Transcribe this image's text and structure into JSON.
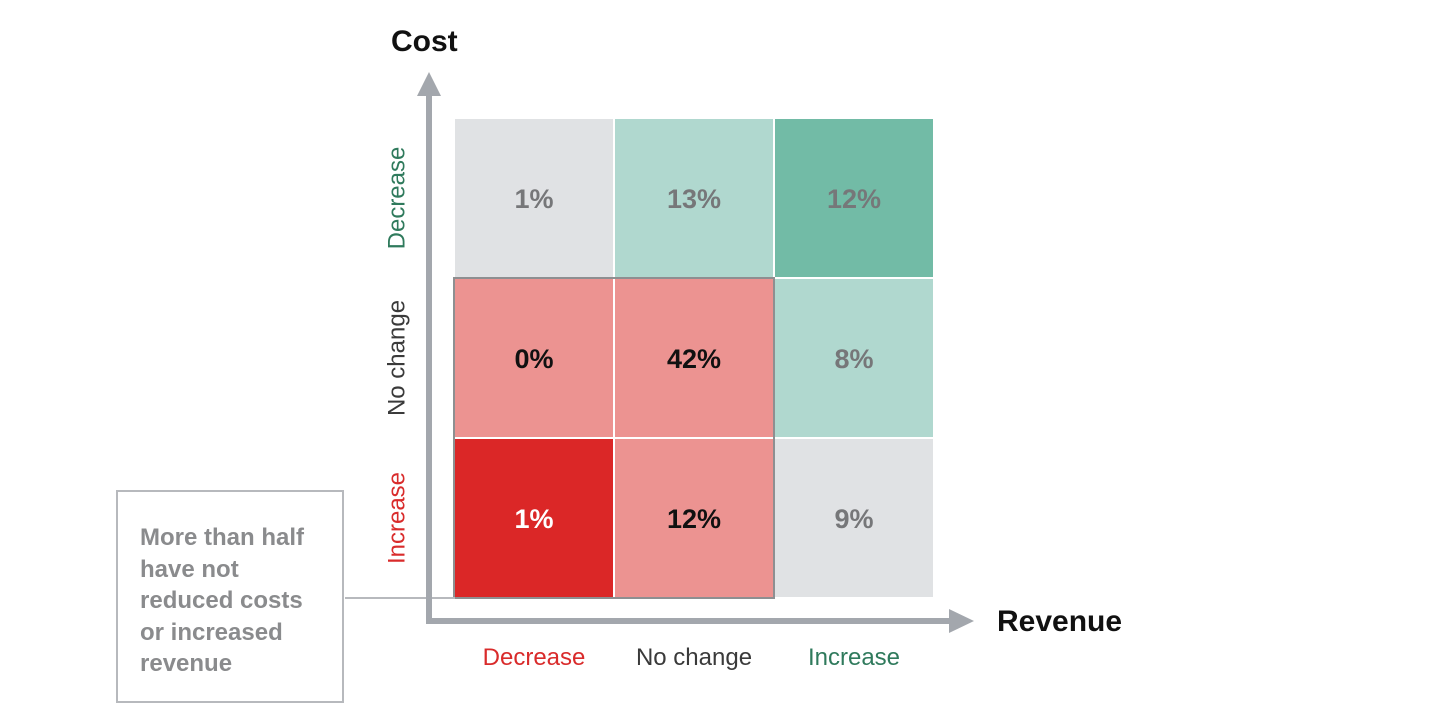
{
  "chart_data": {
    "type": "heatmap",
    "x_axis_title": "Revenue",
    "y_axis_title": "Cost",
    "x_categories": [
      "Decrease",
      "No change",
      "Increase"
    ],
    "y_categories": [
      "Decrease",
      "No change",
      "Increase"
    ],
    "cells": [
      {
        "cost": "Decrease",
        "revenue": "Decrease",
        "label": "1%",
        "value": 1,
        "fill": "#e0e2e4",
        "text_color": "#767779"
      },
      {
        "cost": "Decrease",
        "revenue": "No change",
        "label": "13%",
        "value": 13,
        "fill": "#b0d8cf",
        "text_color": "#767779"
      },
      {
        "cost": "Decrease",
        "revenue": "Increase",
        "label": "12%",
        "value": 12,
        "fill": "#72bba6",
        "text_color": "#767779"
      },
      {
        "cost": "No change",
        "revenue": "Decrease",
        "label": "0%",
        "value": 0,
        "fill": "#ec9391",
        "text_color": "#111111"
      },
      {
        "cost": "No change",
        "revenue": "No change",
        "label": "42%",
        "value": 42,
        "fill": "#ec9391",
        "text_color": "#111111"
      },
      {
        "cost": "No change",
        "revenue": "Increase",
        "label": "8%",
        "value": 8,
        "fill": "#b0d8cf",
        "text_color": "#767779"
      },
      {
        "cost": "Increase",
        "revenue": "Decrease",
        "label": "1%",
        "value": 1,
        "fill": "#db2727",
        "text_color": "#ffffff"
      },
      {
        "cost": "Increase",
        "revenue": "No change",
        "label": "12%",
        "value": 12,
        "fill": "#ec9391",
        "text_color": "#111111"
      },
      {
        "cost": "Increase",
        "revenue": "Increase",
        "label": "9%",
        "value": 9,
        "fill": "#e0e2e4",
        "text_color": "#767779"
      }
    ],
    "highlighted_region": {
      "cost": [
        "No change",
        "Increase"
      ],
      "revenue": [
        "Decrease",
        "No change"
      ]
    },
    "annotation": "More than half have not reduced costs or increased revenue"
  },
  "callout": {
    "lines": [
      "More than half",
      "have not",
      "reduced costs",
      "or increased",
      "revenue"
    ]
  },
  "colors": {
    "axis": "#a3a7ad",
    "decrease_x": "#d92b2b",
    "no_change": "#3a3a3a",
    "increase_x": "#2f7a5c",
    "decrease_y": "#2f7a5c",
    "increase_y": "#d92b2b",
    "highlight_border": "#8e8f91",
    "callout_border": "#b7b9bd"
  }
}
